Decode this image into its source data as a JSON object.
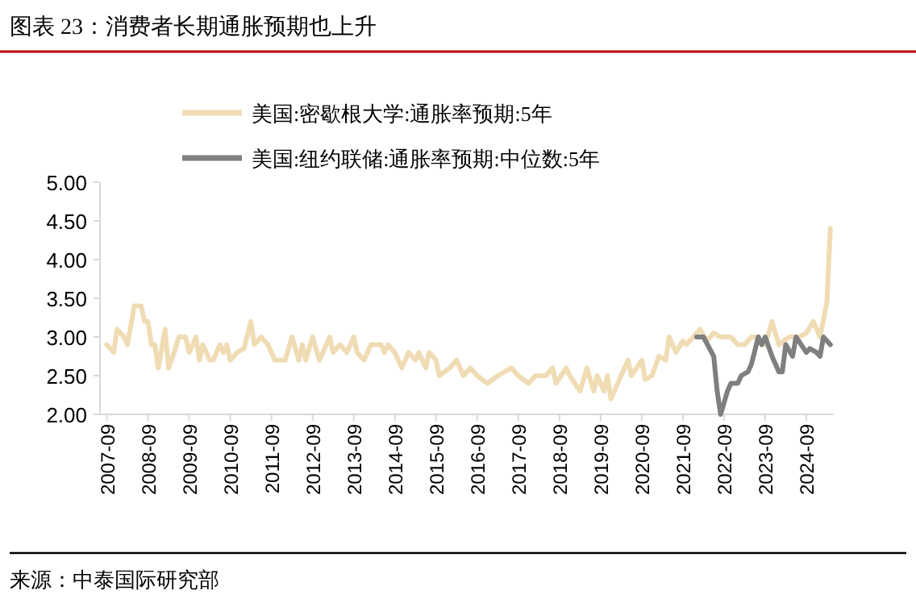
{
  "chart_data": {
    "type": "line",
    "title": "图表 23：消费者长期通胀预期也上升",
    "legend": "top",
    "annotations": [
      "来源：中泰国际研究部"
    ],
    "ylim": [
      2,
      5
    ],
    "yticks": [
      {
        "value": 2,
        "label": "2.00"
      },
      {
        "value": 2.5,
        "label": "2.50"
      },
      {
        "value": 3,
        "label": "3.00"
      },
      {
        "value": 3.5,
        "label": "3.50"
      },
      {
        "value": 4,
        "label": "4.00"
      },
      {
        "value": 4.5,
        "label": "4.50"
      },
      {
        "value": 5,
        "label": "5.00"
      }
    ],
    "xlim": [
      "2007-07",
      "2025-05"
    ],
    "xticks": [
      "2007-09",
      "2008-09",
      "2009-09",
      "2010-09",
      "2011-09",
      "2012-09",
      "2013-09",
      "2014-09",
      "2015-09",
      "2016-09",
      "2017-09",
      "2018-09",
      "2019-09",
      "2020-09",
      "2021-09",
      "2022-09",
      "2023-09",
      "2024-09"
    ],
    "grid": false,
    "marker": "none",
    "line_style": "solid",
    "series": [
      {
        "name": "美国:密歇根大学:通胀率预期:5年",
        "color": "#f0dcb4",
        "x": [
          "2007-09",
          "2007-11",
          "2007-12",
          "2008-02",
          "2008-03",
          "2008-05",
          "2008-07",
          "2008-08",
          "2008-09",
          "2008-10",
          "2008-11",
          "2008-12",
          "2009-02",
          "2009-03",
          "2009-05",
          "2009-06",
          "2009-08",
          "2009-09",
          "2009-11",
          "2009-12",
          "2010-01",
          "2010-03",
          "2010-04",
          "2010-06",
          "2010-07",
          "2010-08",
          "2010-09",
          "2010-11",
          "2011-01",
          "2011-03",
          "2011-04",
          "2011-06",
          "2011-08",
          "2011-10",
          "2012-01",
          "2012-03",
          "2012-05",
          "2012-06",
          "2012-07",
          "2012-09",
          "2012-11",
          "2013-02",
          "2013-03",
          "2013-05",
          "2013-07",
          "2013-09",
          "2013-10",
          "2013-12",
          "2014-02",
          "2014-05",
          "2014-06",
          "2014-07",
          "2014-09",
          "2014-11",
          "2015-01",
          "2015-03",
          "2015-04",
          "2015-06",
          "2015-07",
          "2015-09",
          "2015-10",
          "2016-01",
          "2016-03",
          "2016-05",
          "2016-07",
          "2016-09",
          "2016-12",
          "2017-03",
          "2017-07",
          "2017-09",
          "2017-12",
          "2018-02",
          "2018-05",
          "2018-07",
          "2018-08",
          "2018-11",
          "2018-12",
          "2019-03",
          "2019-05",
          "2019-07",
          "2019-08",
          "2019-10",
          "2019-11",
          "2019-12",
          "2020-02",
          "2020-05",
          "2020-06",
          "2020-09",
          "2020-10",
          "2020-12",
          "2021-02",
          "2021-04",
          "2021-05",
          "2021-07",
          "2021-09",
          "2021-10",
          "2021-12",
          "2022-02",
          "2022-04",
          "2022-06",
          "2022-08",
          "2022-11",
          "2023-01",
          "2023-03",
          "2023-05",
          "2023-07",
          "2023-09",
          "2023-11",
          "2024-01",
          "2024-04",
          "2024-07",
          "2024-09",
          "2024-11",
          "2025-01",
          "2025-03",
          "2025-04"
        ],
        "values": [
          2.9,
          2.8,
          3.1,
          3.0,
          2.9,
          3.4,
          3.4,
          3.2,
          3.2,
          2.9,
          2.9,
          2.6,
          3.1,
          2.6,
          2.85,
          3.0,
          3.0,
          2.8,
          3.0,
          2.7,
          2.9,
          2.7,
          2.7,
          2.9,
          2.8,
          2.9,
          2.7,
          2.8,
          2.85,
          3.2,
          2.9,
          3.0,
          2.9,
          2.7,
          2.7,
          3.0,
          2.7,
          2.9,
          2.7,
          3.0,
          2.7,
          3.0,
          2.8,
          2.9,
          2.8,
          3.0,
          2.8,
          2.7,
          2.9,
          2.9,
          2.8,
          2.9,
          2.8,
          2.6,
          2.8,
          2.7,
          2.8,
          2.6,
          2.8,
          2.7,
          2.5,
          2.6,
          2.7,
          2.5,
          2.6,
          2.5,
          2.4,
          2.5,
          2.6,
          2.5,
          2.4,
          2.5,
          2.5,
          2.6,
          2.4,
          2.6,
          2.5,
          2.3,
          2.6,
          2.3,
          2.5,
          2.3,
          2.5,
          2.2,
          2.4,
          2.7,
          2.5,
          2.7,
          2.45,
          2.5,
          2.75,
          2.7,
          3.0,
          2.8,
          2.95,
          2.9,
          3.0,
          3.1,
          2.95,
          3.05,
          3.0,
          3.0,
          2.9,
          2.9,
          3.0,
          3.0,
          2.9,
          3.2,
          2.9,
          3.0,
          3.0,
          3.05,
          3.2,
          3.0,
          3.45,
          4.4
        ]
      },
      {
        "name": "美国:纽约联储:通胀率预期:中位数:5年",
        "color": "#7f7f7f",
        "x": [
          "2022-01",
          "2022-03",
          "2022-06",
          "2022-07",
          "2022-08",
          "2022-10",
          "2022-11",
          "2023-01",
          "2023-02",
          "2023-04",
          "2023-05",
          "2023-07",
          "2023-08",
          "2023-09",
          "2023-11",
          "2024-01",
          "2024-02",
          "2024-03",
          "2024-05",
          "2024-06",
          "2024-09",
          "2024-10",
          "2024-12",
          "2025-01",
          "2025-02",
          "2025-04"
        ],
        "values": [
          3.0,
          3.0,
          2.75,
          2.3,
          2.0,
          2.3,
          2.4,
          2.4,
          2.5,
          2.55,
          2.65,
          3.0,
          2.9,
          3.0,
          2.75,
          2.55,
          2.55,
          2.9,
          2.75,
          3.0,
          2.8,
          2.85,
          2.8,
          2.75,
          3.0,
          2.9
        ]
      }
    ]
  }
}
